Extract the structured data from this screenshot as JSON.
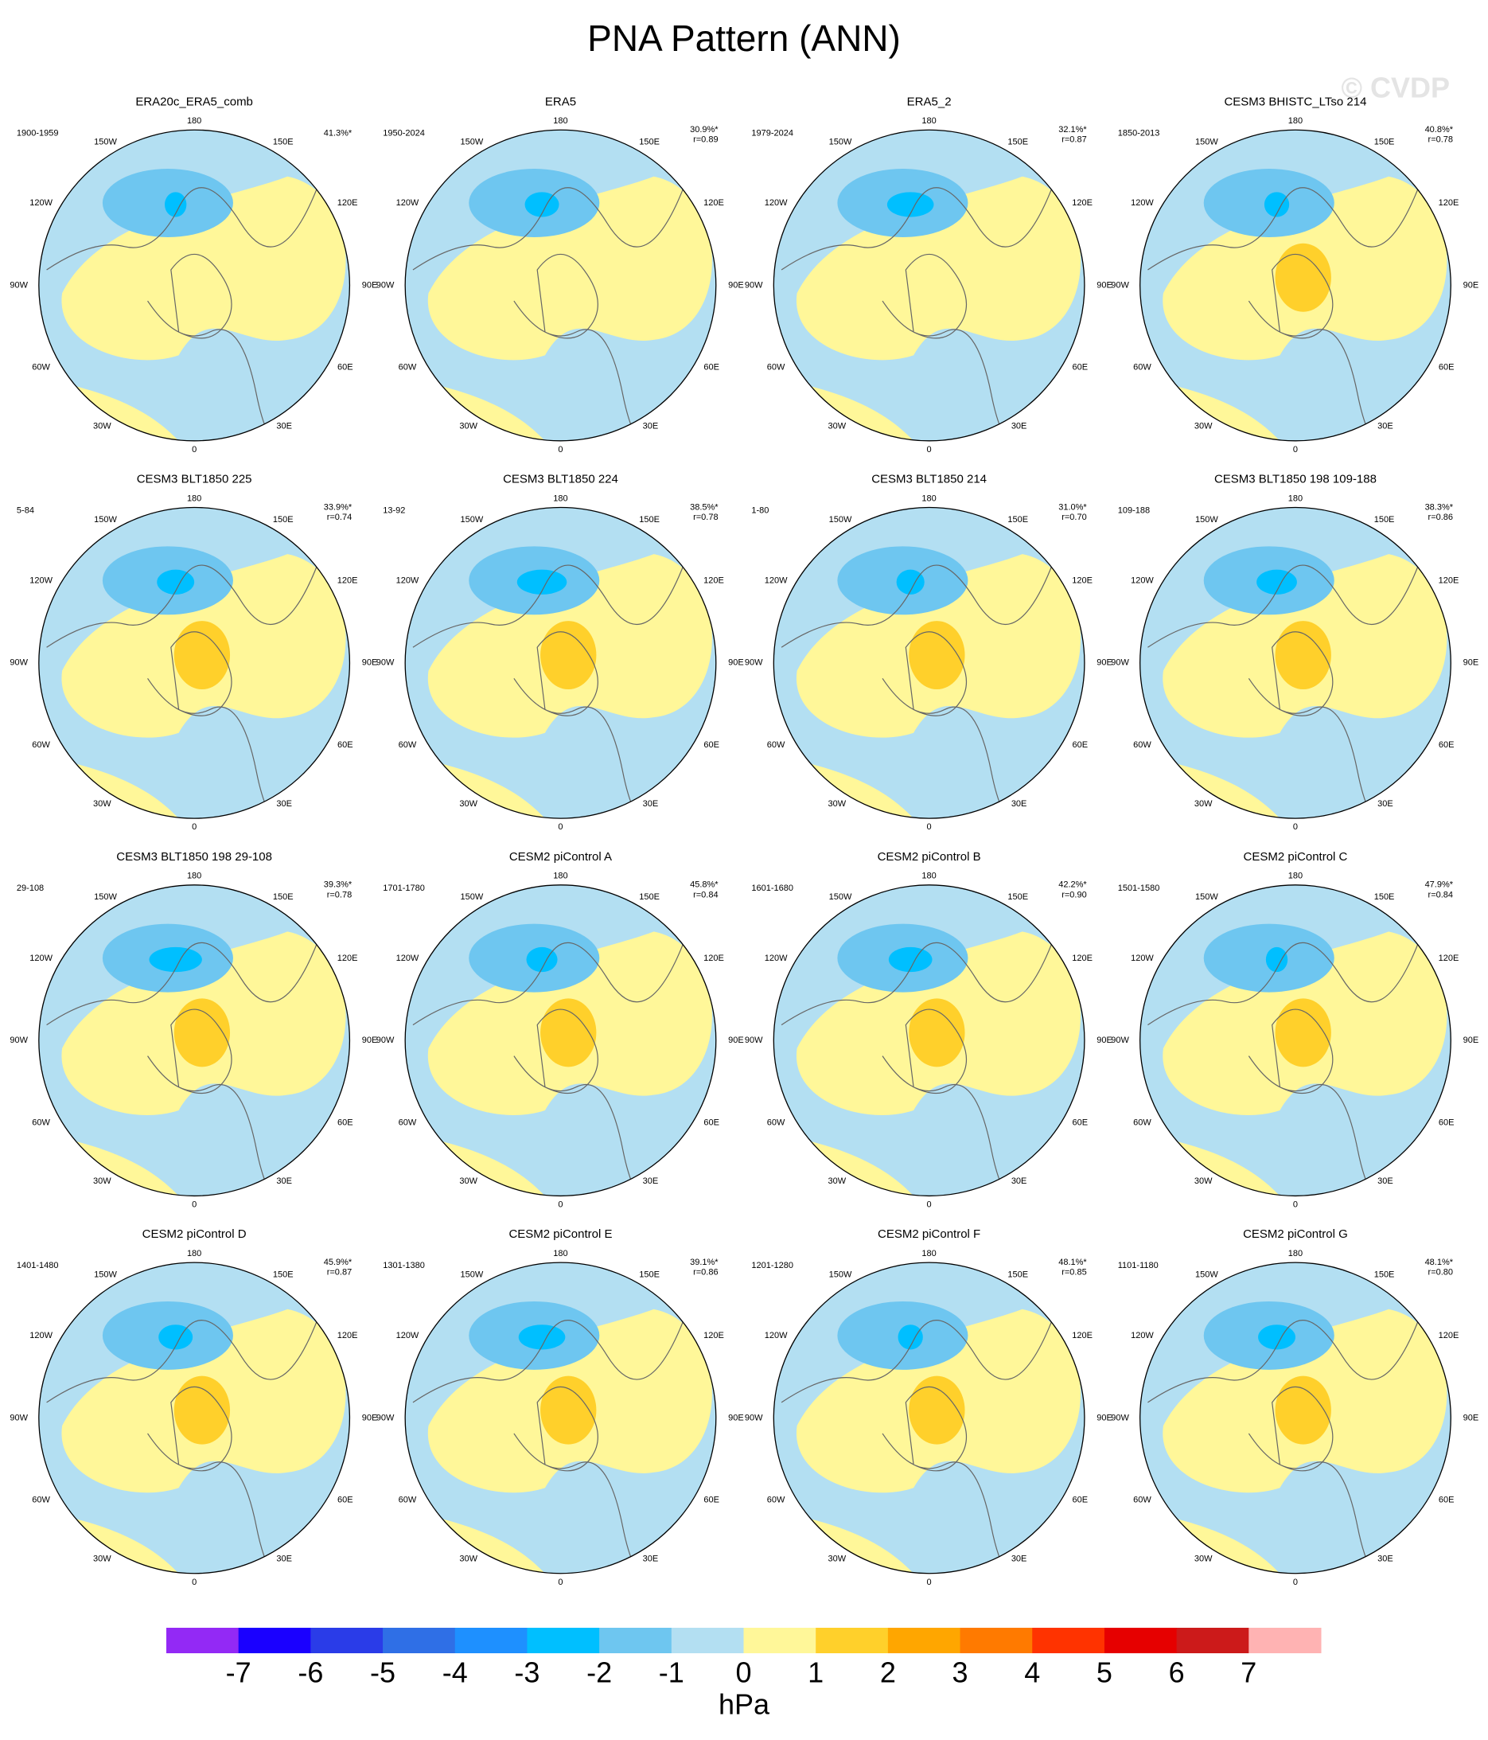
{
  "header": {
    "title": "PNA Pattern (ANN)",
    "watermark": "© CVDP"
  },
  "lon_labels": [
    "180",
    "150W",
    "150E",
    "120W",
    "120E",
    "90W",
    "90E",
    "60W",
    "60E",
    "30W",
    "30E",
    "0"
  ],
  "panels": [
    {
      "title": "ERA20c_ERA5_comb",
      "period": "1900-1959",
      "pct": "41.3%*"
    },
    {
      "title": "ERA5",
      "period": "1950-2024",
      "pct": "30.9%*",
      "r": "r=0.89"
    },
    {
      "title": "ERA5_2",
      "period": "1979-2024",
      "pct": "32.1%*",
      "r": "r=0.87"
    },
    {
      "title": "CESM3 BHISTC_LTso 214",
      "period": "1850-2013",
      "pct": "40.8%*",
      "r": "r=0.78"
    },
    {
      "title": "CESM3 BLT1850 225",
      "period": "5-84",
      "pct": "33.9%*",
      "r": "r=0.74"
    },
    {
      "title": "CESM3 BLT1850 224",
      "period": "13-92",
      "pct": "38.5%*",
      "r": "r=0.78"
    },
    {
      "title": "CESM3 BLT1850 214",
      "period": "1-80",
      "pct": "31.0%*",
      "r": "r=0.70"
    },
    {
      "title": "CESM3 BLT1850 198 109-188",
      "period": "109-188",
      "pct": "38.3%*",
      "r": "r=0.86"
    },
    {
      "title": "CESM3 BLT1850 198 29-108",
      "period": "29-108",
      "pct": "39.3%*",
      "r": "r=0.78"
    },
    {
      "title": "CESM2 piControl A",
      "period": "1701-1780",
      "pct": "45.8%*",
      "r": "r=0.84"
    },
    {
      "title": "CESM2 piControl B",
      "period": "1601-1680",
      "pct": "42.2%*",
      "r": "r=0.90"
    },
    {
      "title": "CESM2 piControl C",
      "period": "1501-1580",
      "pct": "47.9%*",
      "r": "r=0.84"
    },
    {
      "title": "CESM2 piControl D",
      "period": "1401-1480",
      "pct": "45.9%*",
      "r": "r=0.87"
    },
    {
      "title": "CESM2 piControl E",
      "period": "1301-1380",
      "pct": "39.1%*",
      "r": "r=0.86"
    },
    {
      "title": "CESM2 piControl F",
      "period": "1201-1280",
      "pct": "48.1%*",
      "r": "r=0.85"
    },
    {
      "title": "CESM2 piControl G",
      "period": "1101-1180",
      "pct": "48.1%*",
      "r": "r=0.80"
    }
  ],
  "colorbar": {
    "levels": [
      -7,
      -6,
      -5,
      -4,
      -3,
      -2,
      -1,
      0,
      1,
      2,
      3,
      4,
      5,
      6,
      7
    ],
    "colors": [
      "#9329f5",
      "#1a00ff",
      "#2a3ce8",
      "#2f6fe6",
      "#1e90ff",
      "#00bfff",
      "#6ec6f0",
      "#b3dff2",
      "#fff799",
      "#ffd02b",
      "#ffa600",
      "#ff7a00",
      "#ff3300",
      "#e60000",
      "#cc1a1a",
      "#ffb3b3"
    ],
    "unit": "hPa"
  }
}
